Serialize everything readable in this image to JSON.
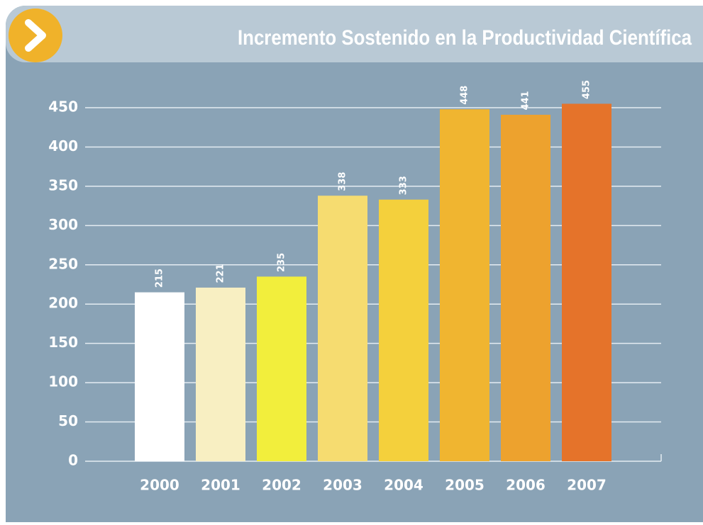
{
  "chart_data": {
    "type": "bar",
    "title": "Incremento Sostenido en la Productividad Científica",
    "categories": [
      "2000",
      "2001",
      "2002",
      "2003",
      "2004",
      "2005",
      "2006",
      "2007"
    ],
    "values": [
      215,
      221,
      235,
      338,
      333,
      448,
      441,
      455
    ],
    "colors": [
      "#ffffff",
      "#f8efc2",
      "#f2ee3c",
      "#f6dc70",
      "#f4d03c",
      "#f0b530",
      "#eda22e",
      "#e5732a"
    ],
    "ylim": [
      0,
      450
    ],
    "yticks": [
      0,
      50,
      100,
      150,
      200,
      250,
      300,
      350,
      400,
      450
    ],
    "grid": true
  }
}
